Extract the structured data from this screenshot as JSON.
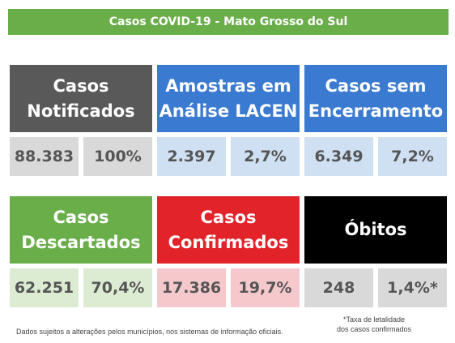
{
  "banner": {
    "title": "Casos COVID-19 - Mato Grosso do Sul",
    "color": "#6aae4a"
  },
  "cards": {
    "notificados": {
      "title": "Casos\nNotificados",
      "count": "88.383",
      "percent": "100%",
      "header_color": "#595959",
      "value_bg": "#d9d9d9"
    },
    "lacen": {
      "title": "Amostras em\nAnálise LACEN",
      "count": "2.397",
      "percent": "2,7%",
      "header_color": "#3a7ad0",
      "value_bg": "#cfe0f3"
    },
    "encerramento": {
      "title": "Casos sem\nEncerramento",
      "count": "6.349",
      "percent": "7,2%",
      "header_color": "#3a7ad0",
      "value_bg": "#cfe0f3"
    },
    "descartados": {
      "title": "Casos\nDescartados",
      "count": "62.251",
      "percent": "70,4%",
      "header_color": "#6aae4a",
      "value_bg": "#dcecd2"
    },
    "confirmados": {
      "title": "Casos\nConfirmados",
      "count": "17.386",
      "percent": "19,7%",
      "header_color": "#e2232a",
      "value_bg": "#f5c8cc"
    },
    "obitos": {
      "title": "Óbitos",
      "count": "248",
      "percent": "1,4%*",
      "header_color": "#000000",
      "value_bg": "#d9d9d9"
    }
  },
  "footnotes": {
    "disclaimer": "Dados sujeitos a alterações pelos municípios, nos sistemas de informação oficiais.",
    "letalidade_line1": "*Taxa de letalidade",
    "letalidade_line2": "dos casos confirmados"
  }
}
